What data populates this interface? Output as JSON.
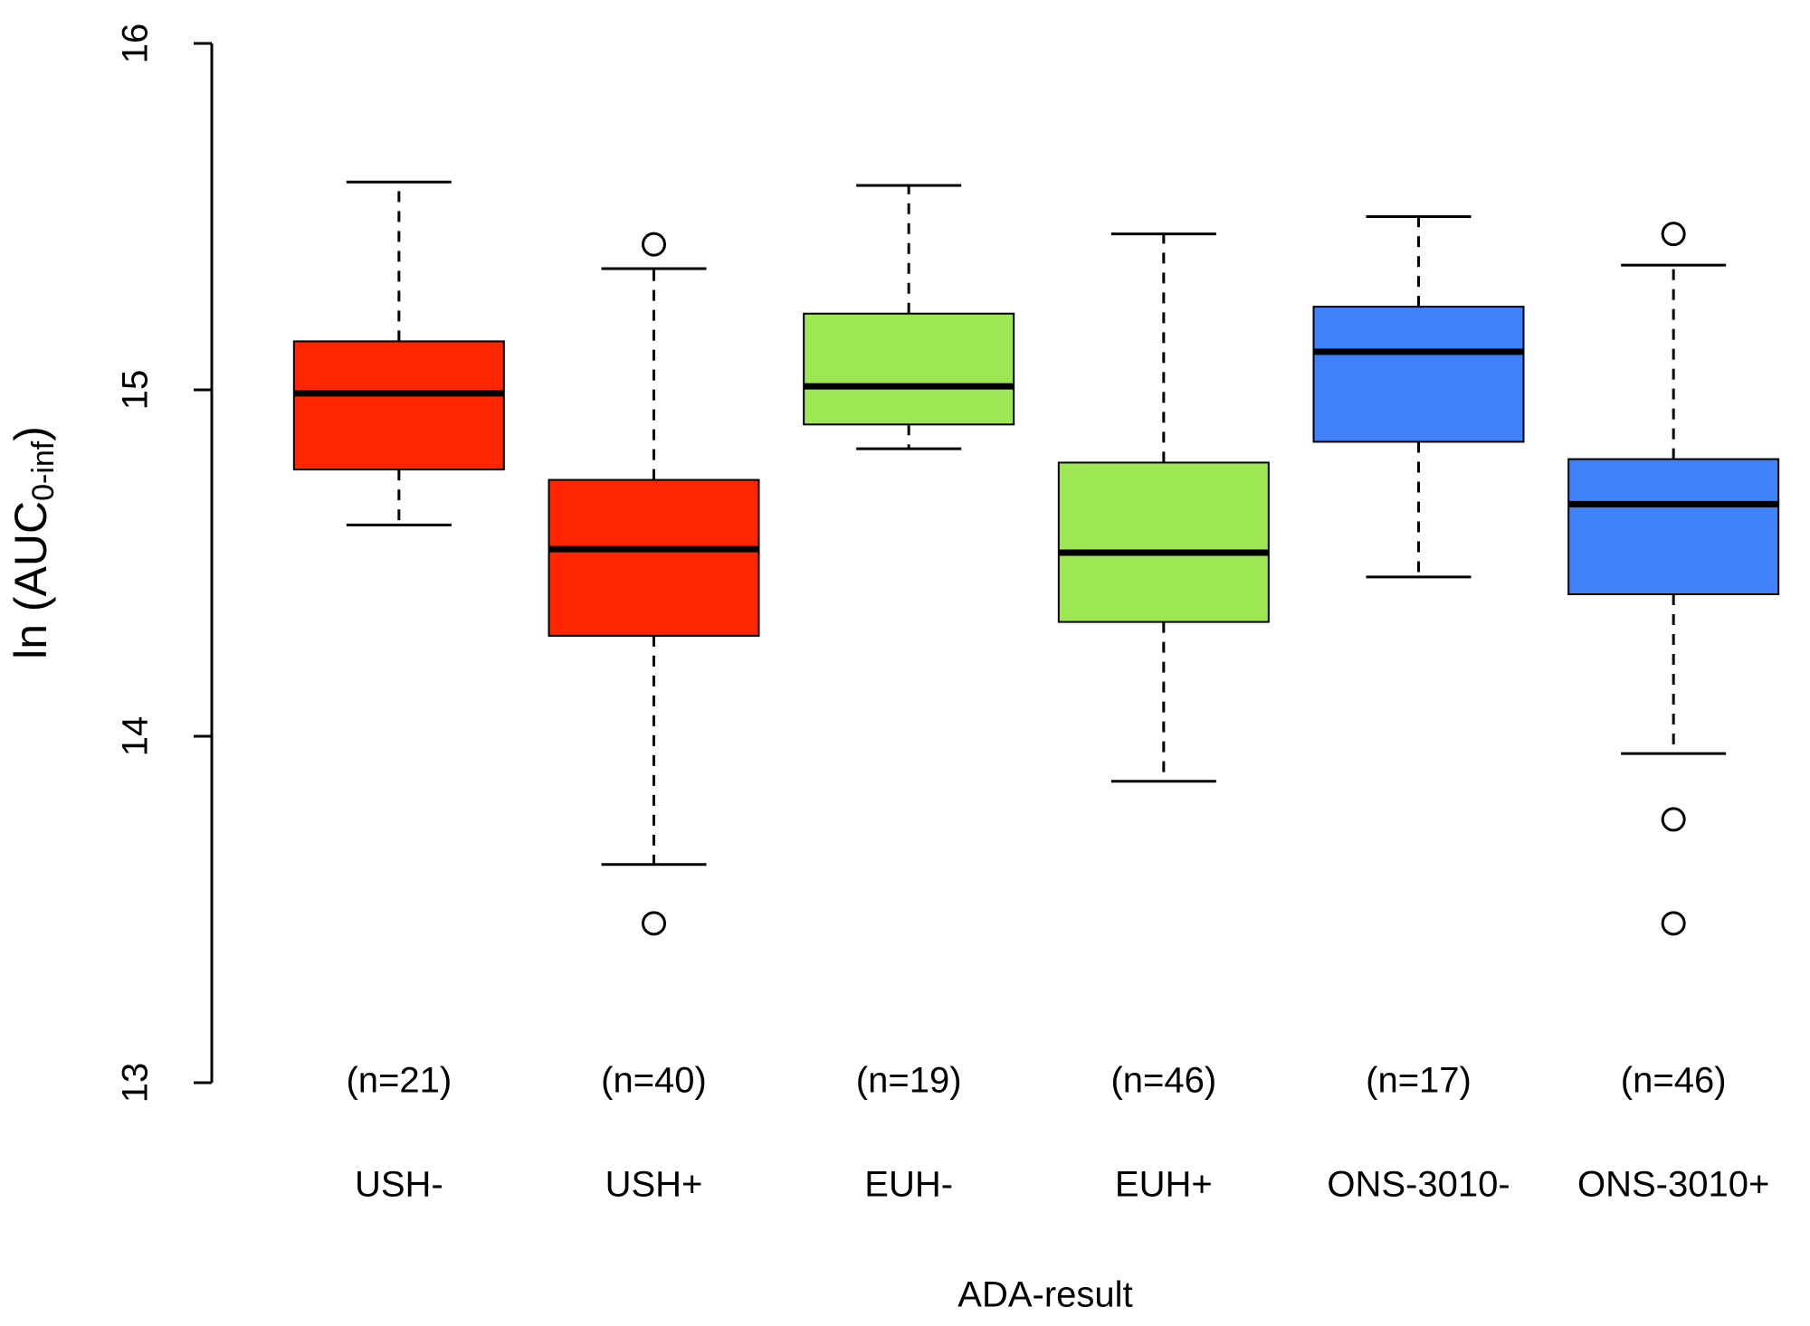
{
  "chart_data": {
    "type": "box",
    "x_label": "ADA-result",
    "y_label": {
      "text": "ln (AUC",
      "subscript": "0-inf",
      "suffix": ")"
    },
    "ylim": [
      13,
      16
    ],
    "yticks": [
      13,
      14,
      15,
      16
    ],
    "boxes": [
      {
        "name": "USH-",
        "n_label": "(n=21)",
        "color": "#ff2500",
        "whisker_low": 14.61,
        "q1": 14.77,
        "median": 14.99,
        "q3": 15.14,
        "whisker_high": 15.6,
        "outliers": []
      },
      {
        "name": "USH+",
        "n_label": "(n=40)",
        "color": "#ff2500",
        "whisker_low": 13.63,
        "q1": 14.29,
        "median": 14.54,
        "q3": 14.74,
        "whisker_high": 15.35,
        "outliers": [
          15.42,
          13.46
        ]
      },
      {
        "name": "EUH-",
        "n_label": "(n=19)",
        "color": "#9de755",
        "whisker_low": 14.83,
        "q1": 14.9,
        "median": 15.01,
        "q3": 15.22,
        "whisker_high": 15.59,
        "outliers": []
      },
      {
        "name": "EUH+",
        "n_label": "(n=46)",
        "color": "#9de755",
        "whisker_low": 13.87,
        "q1": 14.33,
        "median": 14.53,
        "q3": 14.79,
        "whisker_high": 15.45,
        "outliers": []
      },
      {
        "name": "ONS-3010-",
        "n_label": "(n=17)",
        "color": "#4080fb",
        "whisker_low": 14.46,
        "q1": 14.85,
        "median": 15.11,
        "q3": 15.24,
        "whisker_high": 15.5,
        "outliers": []
      },
      {
        "name": "ONS-3010+",
        "n_label": "(n=46)",
        "color": "#4080fb",
        "whisker_low": 13.95,
        "q1": 14.41,
        "median": 14.67,
        "q3": 14.8,
        "whisker_high": 15.36,
        "outliers": [
          15.45,
          13.76,
          13.46
        ]
      }
    ]
  }
}
